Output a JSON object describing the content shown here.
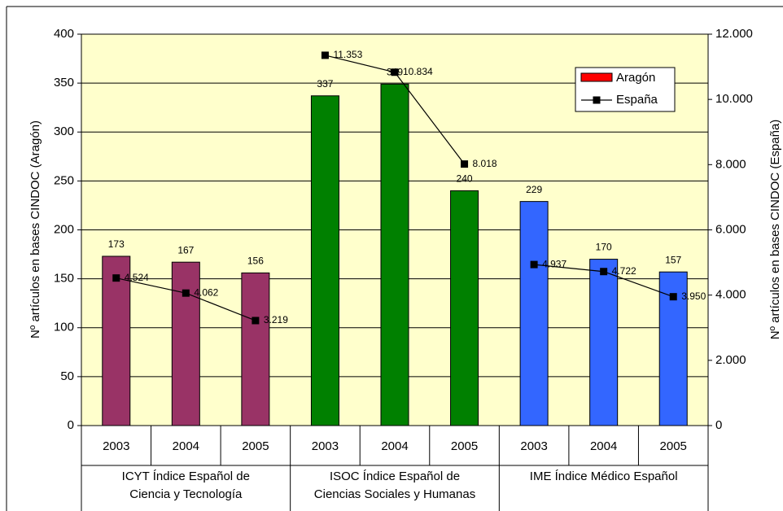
{
  "chart_data": {
    "type": "bar_line",
    "y_label": "Nº artículos en bases CINDOC (Aragón)",
    "y2_label": "Nº artículos en bases CINDOC (España)",
    "groups": [
      {
        "label": [
          "ICYT Índice Español de",
          "Ciencia y Tecnología"
        ],
        "categories": [
          "2003",
          "2004",
          "2005"
        ]
      },
      {
        "label": [
          "ISOC Índice Español de",
          "Ciencias Sociales y Humanas"
        ],
        "categories": [
          "2003",
          "2004",
          "2005"
        ]
      },
      {
        "label": [
          "IME Índice Médico Español"
        ],
        "categories": [
          "2003",
          "2004",
          "2005"
        ]
      }
    ],
    "series": [
      {
        "name": "Aragón",
        "color": "#ff0000",
        "point_colors": [
          "#993366",
          "#993366",
          "#993366",
          "#008000",
          "#008000",
          "#008000",
          "#3366ff",
          "#3366ff",
          "#3366ff"
        ],
        "values": [
          173,
          167,
          156,
          337,
          349,
          240,
          229,
          170,
          157
        ]
      },
      {
        "name": "España",
        "color": "#000000",
        "axis": "y2",
        "values": [
          4524,
          4062,
          3219,
          11353,
          10834,
          8018,
          4937,
          4722,
          3950
        ],
        "value_labels": [
          "4.524",
          "4.062",
          "3.219",
          "11.353",
          "10.834",
          "8.018",
          "4.937",
          "4.722",
          "3.950"
        ]
      }
    ],
    "ylim": [
      0,
      400
    ],
    "yticks": [
      0,
      50,
      100,
      150,
      200,
      250,
      300,
      350,
      400
    ],
    "y2lim": [
      0,
      12000
    ],
    "y2ticks": [
      0,
      {
        "value": 2000,
        "label": "2.000"
      },
      {
        "value": 4000,
        "label": "4.000"
      },
      {
        "value": 6000,
        "label": "6.000"
      },
      {
        "value": 8000,
        "label": "8.000"
      },
      {
        "value": 10000,
        "label": "10.000"
      },
      {
        "value": 12000,
        "label": "12.000"
      }
    ],
    "grid": true,
    "background": "#ffffcc"
  }
}
